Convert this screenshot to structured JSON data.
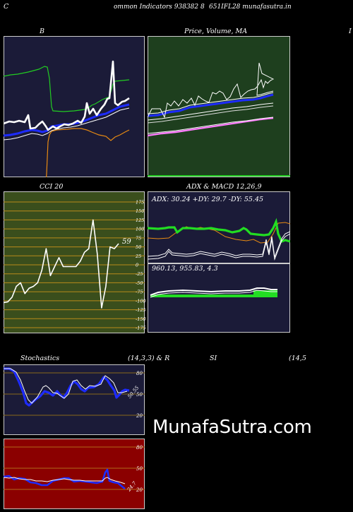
{
  "header": {
    "left": "C",
    "title": "ommon  Indicators 938382  8",
    "right": "651IFL28  munafasutra.in"
  },
  "watermark": "MunafaSutra.com",
  "colors": {
    "navy": "#1b1b38",
    "green_bg": "#1e3f1e",
    "olive_bg": "#3a4e1c",
    "red_bg": "#8b0000",
    "white": "#ffffff",
    "green_line": "#1fd41f",
    "blue": "#1d2bff",
    "orange": "#e88a12",
    "pink": "#ff7cff"
  },
  "chart_data": [
    {
      "type": "line",
      "name": "bollinger",
      "title": "B",
      "series": [
        {
          "values": [
            172,
            173,
            171,
            172,
            173,
            174,
            175,
            174,
            171,
            170,
            160,
            158,
            157,
            158,
            158,
            158,
            159,
            158,
            159,
            159,
            158,
            157,
            156,
            150,
            130,
            150,
            147,
            146,
            147,
            148,
            144,
            141,
            139,
            140,
            138
          ]
        },
        {
          "values": [
            186,
            186,
            185,
            187,
            186,
            186,
            185,
            183,
            186,
            180,
            182,
            183,
            181,
            180,
            177,
            182,
            179,
            175,
            180,
            175,
            170,
            172,
            163,
            170,
            165,
            160,
            153,
            160,
            154,
            154,
            150,
            148,
            143,
            143,
            147,
            147
          ]
        },
        {
          "values": [
            107,
            108,
            106,
            103,
            105,
            102,
            98,
            97,
            96,
            96,
            97,
            96,
            96,
            96,
            96,
            95,
            96,
            97,
            98,
            92,
            101,
            158,
            157,
            157,
            157,
            158,
            157,
            157,
            157,
            157,
            156,
            155,
            144,
            142,
            140,
            131,
            113,
            112,
            113,
            112,
            114
          ]
        },
        {
          "values": [
            0,
            0,
            0,
            0,
            0,
            0,
            0,
            0,
            0,
            0,
            0,
            0,
            0,
            0,
            0,
            0,
            0,
            180,
            190,
            192,
            193,
            194,
            195,
            195,
            190,
            188,
            190,
            190,
            190,
            188,
            188,
            188,
            182,
            178,
            175,
            172,
            165,
            158,
            160,
            170,
            195,
            198,
            185
          ]
        }
      ]
    },
    {
      "type": "line",
      "name": "price-ma",
      "title": "Price,  Volume,  MA",
      "series": [
        {
          "name": "Price",
          "values": [
            167,
            161,
            161,
            161,
            167,
            153,
            156,
            152,
            156,
            151,
            154,
            150,
            155,
            146,
            148,
            150,
            151,
            141,
            142,
            140,
            142,
            147,
            144,
            134,
            130,
            141,
            138,
            135,
            134,
            133,
            132,
            133,
            128,
            130,
            124,
            130,
            132,
            128,
            89,
            134,
            132,
            132,
            128
          ]
        },
        {
          "name": "Volume",
          "values": [
            0
          ]
        }
      ]
    },
    {
      "type": "line",
      "name": "cci",
      "title": "CCI 20",
      "last_label": "59",
      "ylim": [
        -175,
        175
      ],
      "ticks": [
        "175",
        "150",
        "125",
        "100",
        "75",
        "50",
        "25",
        "0",
        "-25",
        "-50",
        "-75",
        "-100",
        "-125",
        "-150",
        "-175"
      ],
      "series": [
        {
          "values": [
            -105,
            -103,
            -90,
            -60,
            -50,
            -80,
            -65,
            -60,
            -50,
            -15,
            45,
            -30,
            -5,
            20,
            -5,
            -5,
            -5,
            -5,
            10,
            35,
            45,
            125,
            30,
            -120,
            -60,
            50,
            45,
            59
          ]
        }
      ]
    },
    {
      "type": "line",
      "name": "adx-macd",
      "title": "ADX  & MACD 12,26,9",
      "adx_label": "ADX: 30.24  +DY: 29.7 -DY: 55.45",
      "macd_label": "960.13,  955.83,  4.3"
    },
    {
      "type": "line",
      "name": "stochastics",
      "title": "Stochastics",
      "params": "(14,3,3) & R",
      "last_label": "50.55",
      "ticks": [
        "80",
        "50",
        "20"
      ]
    },
    {
      "type": "line",
      "name": "rsi",
      "title": "SI",
      "params": "(14,5",
      "last_label": "24.7",
      "ticks": [
        "80",
        "50",
        "20"
      ]
    }
  ],
  "partial_label": "I"
}
